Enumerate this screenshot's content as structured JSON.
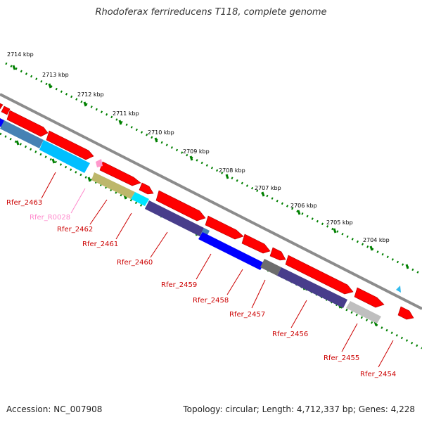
{
  "title": "Rhodoferax ferrireducens T118, complete genome",
  "accession": "Accession: NC_007908",
  "summary": "Topology: circular; Length: 4,712,337 bp; Genes: 4,228",
  "colors": {
    "cds_forward": "#ff0000",
    "backbone": "#8c8c8c",
    "ticks": "#008000",
    "gene_label": "#cc0000",
    "rna_label": "#ff88cc"
  },
  "kbp_labels": [
    "2714 kbp",
    "2713 kbp",
    "2712 kbp",
    "2711 kbp",
    "2710 kbp",
    "2709 kbp",
    "2708 kbp",
    "2707 kbp",
    "2706 kbp",
    "2705 kbp",
    "2704 kbp"
  ],
  "gene_labels": [
    {
      "text": "Rfer_2463",
      "type": "gene"
    },
    {
      "text": "Rfer_R0028",
      "type": "rna"
    },
    {
      "text": "Rfer_2462",
      "type": "gene"
    },
    {
      "text": "Rfer_2461",
      "type": "gene"
    },
    {
      "text": "Rfer_2460",
      "type": "gene"
    },
    {
      "text": "Rfer_2459",
      "type": "gene"
    },
    {
      "text": "Rfer_2458",
      "type": "gene"
    },
    {
      "text": "Rfer_2457",
      "type": "gene"
    },
    {
      "text": "Rfer_2456",
      "type": "gene"
    },
    {
      "text": "Rfer_2455",
      "type": "gene"
    },
    {
      "text": "Rfer_2454",
      "type": "gene"
    }
  ]
}
